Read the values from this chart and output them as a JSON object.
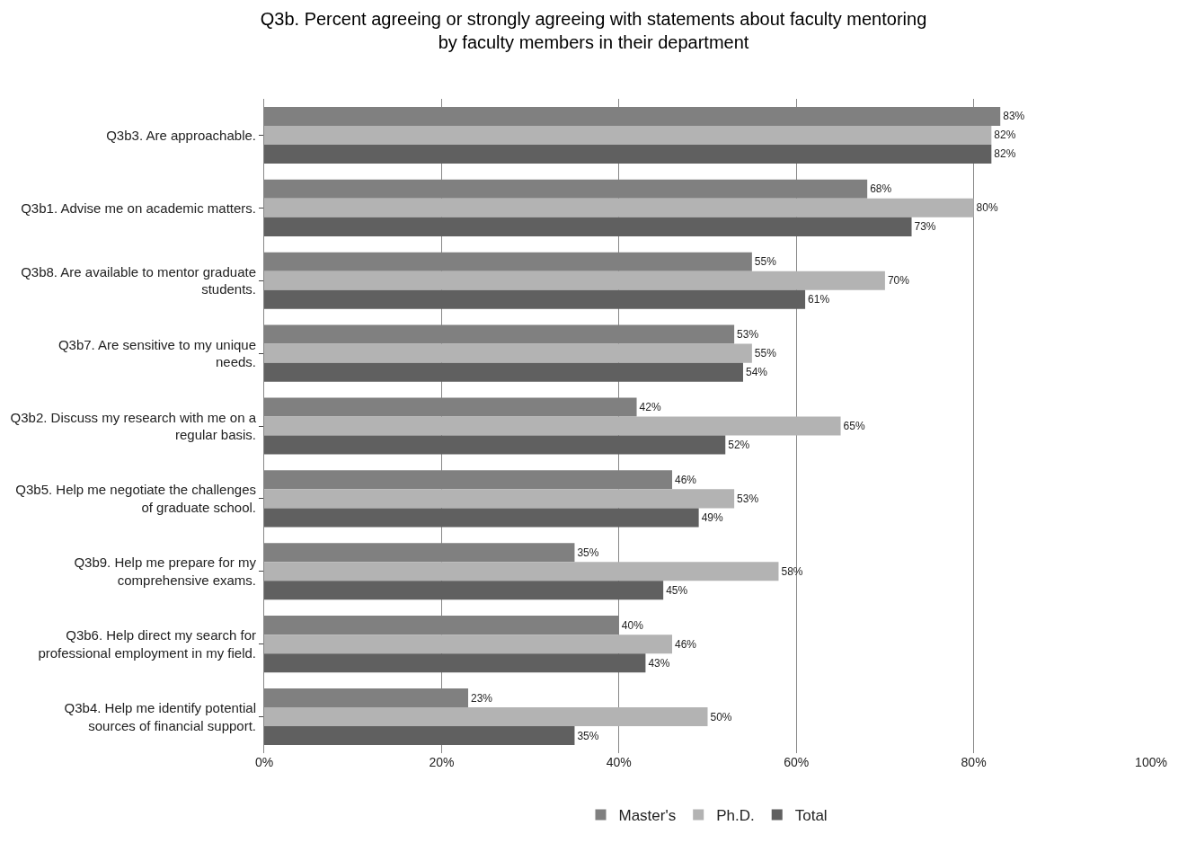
{
  "chart_data": {
    "type": "bar",
    "orientation": "horizontal",
    "title": "Q3b. Percent agreeing or strongly agreeing with statements about faculty mentoring by faculty members in their department",
    "categories": [
      "Q3b3. Are approachable.",
      "Q3b1. Advise me on academic matters.",
      "Q3b8. Are available to mentor graduate students.",
      "Q3b7. Are sensitive to my unique needs.",
      "Q3b2. Discuss my research with me on a regular basis.",
      "Q3b5. Help me negotiate the challenges of graduate school.",
      "Q3b9. Help me prepare for my comprehensive exams.",
      "Q3b6. Help direct my search for professional employment in my field.",
      "Q3b4. Help me identify potential sources of financial support."
    ],
    "series": [
      {
        "name": "Master's",
        "color": "#808080",
        "values": [
          83,
          68,
          55,
          53,
          42,
          46,
          35,
          40,
          23
        ],
        "value_labels": [
          "83%",
          "68%",
          "55%",
          "53%",
          "42%",
          "46%",
          "35%",
          "40%",
          "23%"
        ]
      },
      {
        "name": "Ph.D.",
        "color": "#b3b3b3",
        "values": [
          82,
          80,
          70,
          55,
          65,
          53,
          58,
          46,
          50
        ],
        "value_labels": [
          "82%",
          "80%",
          "70%",
          "55%",
          "65%",
          "53%",
          "58%",
          "46%",
          "50%"
        ]
      },
      {
        "name": "Total",
        "color": "#606060",
        "values": [
          82,
          73,
          61,
          54,
          52,
          49,
          45,
          43,
          35
        ],
        "value_labels": [
          "82%",
          "73%",
          "61%",
          "54%",
          "52%",
          "49%",
          "45%",
          "43%",
          "35%"
        ]
      }
    ],
    "xlim": [
      0,
      100
    ],
    "xticks": [
      {
        "value": 0,
        "label": "0%"
      },
      {
        "value": 20,
        "label": "20%"
      },
      {
        "value": 40,
        "label": "40%"
      },
      {
        "value": 60,
        "label": "60%"
      },
      {
        "value": 80,
        "label": "80%"
      },
      {
        "value": 100,
        "label": "100%"
      }
    ],
    "grid": "x",
    "legend": "bottom"
  }
}
